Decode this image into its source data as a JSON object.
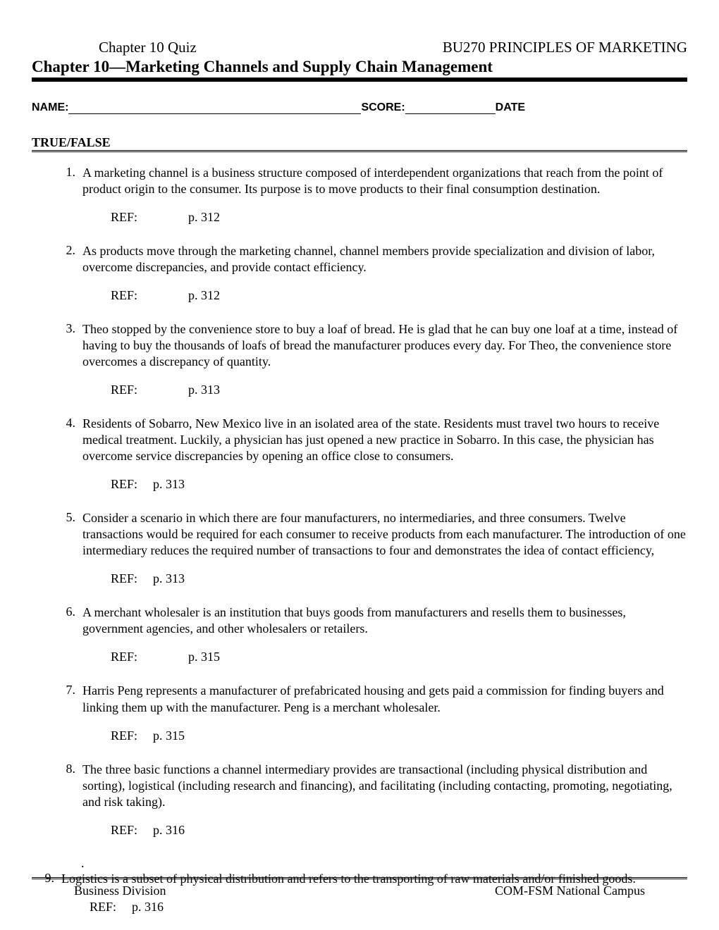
{
  "header": {
    "left": "Chapter 10 Quiz",
    "right": "BU270 PRINCIPLES OF MARKETING"
  },
  "chapter_title": "Chapter 10—Marketing Channels and Supply Chain Management",
  "form_line": {
    "name_label": "NAME:",
    "score_label": "SCORE:",
    "date_label": "DATE"
  },
  "section_heading": "TRUE/FALSE",
  "ref_label": "REF:",
  "questions": [
    {
      "num": "1.",
      "text": "A marketing channel is a business structure composed of interdependent organizations that reach from the point of product origin to the consumer. Its purpose is to move products to their final consumption destination.",
      "ref": "p. 312",
      "tight": false
    },
    {
      "num": "2.",
      "text": "As products move through the marketing channel, channel members provide specialization and division of labor, overcome discrepancies, and provide contact efficiency.",
      "ref": "p. 312",
      "tight": false
    },
    {
      "num": "3.",
      "text": "Theo stopped by the convenience store to buy a loaf of bread. He is glad that he can buy one loaf at a time, instead of having to buy the thousands of loafs of bread the manufacturer produces every day. For Theo, the convenience store overcomes a discrepancy of quantity.",
      "ref": "p. 313",
      "tight": false
    },
    {
      "num": "4.",
      "text": "Residents of Sobarro, New Mexico live in an isolated area of the state. Residents must travel two hours to receive medical treatment. Luckily, a physician has just opened a new practice in Sobarro. In this case, the physician has overcome service discrepancies by opening an office close to consumers.",
      "ref": "p. 313",
      "tight": true
    },
    {
      "num": "5.",
      "text": "Consider a scenario in which there are four manufacturers, no intermediaries, and three consumers. Twelve transactions would be required for each consumer to receive products from each manufacturer. The introduction of one intermediary reduces the required number of transactions to four and demonstrates the idea of contact efficiency,",
      "ref": "p. 313",
      "tight": true
    },
    {
      "num": "6.",
      "text": "A merchant wholesaler is an institution that buys goods from manufacturers and resells them to businesses, government agencies, and other wholesalers or retailers.",
      "ref": "p. 315",
      "tight": false
    },
    {
      "num": "7.",
      "text": "Harris Peng represents a manufacturer of prefabricated housing and gets paid a commission for finding buyers and linking them up with the manufacturer. Peng is a merchant wholesaler.",
      "ref": "p. 315",
      "tight": true
    },
    {
      "num": "8.",
      "text": "The three basic functions a channel intermediary provides are transactional (including physical distribution and sorting), logistical (including research and financing), and facilitating (including contacting, promoting, negotiating, and risk taking).",
      "ref": "p. 316",
      "tight": true
    },
    {
      "num": "9.",
      "text": "Logistics is a subset of physical distribution and refers to the transporting of raw materials and/or finished goods.",
      "ref": "p. 316",
      "tight": true
    }
  ],
  "footer": {
    "left": "Business Division",
    "right": "COM-FSM National Campus"
  },
  "colors": {
    "text": "#000000",
    "background": "#ffffff"
  },
  "typography": {
    "body_font": "Times New Roman",
    "form_font": "Arial",
    "body_fontsize": 18,
    "header_fontsize": 21,
    "title_fontsize": 23,
    "form_fontsize": 16
  }
}
